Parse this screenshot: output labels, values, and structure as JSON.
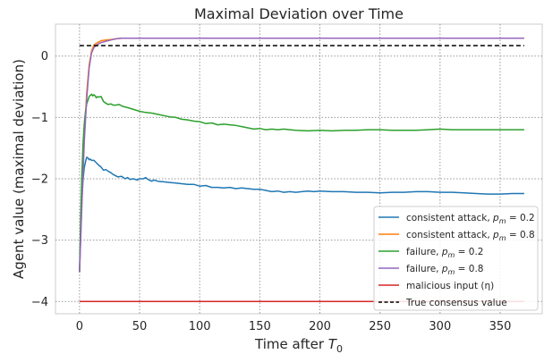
{
  "chart_data": {
    "type": "line",
    "title": "Maximal Deviation over Time",
    "xlabel": "Time after T₀",
    "ylabel": "Agent value (maximal deviation)",
    "xlim": [
      -20,
      385
    ],
    "ylim": [
      -4.2,
      0.52
    ],
    "xticks": [
      0,
      50,
      100,
      150,
      200,
      250,
      300,
      350
    ],
    "yticks": [
      0,
      -1,
      -2,
      -3,
      -4
    ],
    "grid": true,
    "legend_position": "lower-right",
    "series": [
      {
        "name": "consistent attack, p_m = 0.2",
        "label_main": "consistent attack, ",
        "label_p": "p",
        "label_sub": "m",
        "label_rest": " = 0.2",
        "color": "#1f77b4",
        "x": [
          0,
          1,
          2,
          3,
          4,
          5,
          6,
          7,
          8,
          9,
          10,
          12,
          14,
          16,
          18,
          20,
          22,
          24,
          26,
          28,
          30,
          32,
          35,
          38,
          40,
          42,
          45,
          48,
          50,
          53,
          55,
          57,
          60,
          62,
          65,
          70,
          75,
          80,
          85,
          90,
          95,
          100,
          105,
          110,
          115,
          120,
          125,
          130,
          135,
          140,
          145,
          150,
          155,
          160,
          165,
          170,
          175,
          180,
          185,
          190,
          195,
          200,
          210,
          220,
          230,
          240,
          250,
          260,
          270,
          280,
          290,
          300,
          310,
          320,
          330,
          340,
          350,
          360,
          370
        ],
        "y": [
          -3.52,
          -2.8,
          -2.3,
          -2.0,
          -1.82,
          -1.72,
          -1.65,
          -1.66,
          -1.69,
          -1.68,
          -1.7,
          -1.7,
          -1.74,
          -1.78,
          -1.81,
          -1.86,
          -1.85,
          -1.88,
          -1.9,
          -1.93,
          -1.95,
          -1.97,
          -1.96,
          -2.0,
          -1.98,
          -2.01,
          -2.0,
          -2.02,
          -2.0,
          -2.0,
          -1.98,
          -2.01,
          -2.04,
          -2.02,
          -2.04,
          -2.05,
          -2.06,
          -2.07,
          -2.08,
          -2.09,
          -2.09,
          -2.12,
          -2.11,
          -2.14,
          -2.14,
          -2.15,
          -2.14,
          -2.16,
          -2.15,
          -2.16,
          -2.17,
          -2.17,
          -2.19,
          -2.21,
          -2.2,
          -2.22,
          -2.21,
          -2.22,
          -2.21,
          -2.2,
          -2.21,
          -2.2,
          -2.21,
          -2.21,
          -2.22,
          -2.22,
          -2.23,
          -2.22,
          -2.22,
          -2.21,
          -2.21,
          -2.22,
          -2.22,
          -2.23,
          -2.24,
          -2.25,
          -2.25,
          -2.24,
          -2.24
        ]
      },
      {
        "name": "consistent attack, p_m = 0.8",
        "label_main": "consistent attack, ",
        "label_p": "p",
        "label_sub": "m",
        "label_rest": " = 0.8",
        "color": "#ff7f0e",
        "x": [
          0,
          2,
          4,
          6,
          8,
          10,
          12,
          15,
          18,
          22,
          26,
          30,
          35,
          40,
          370
        ],
        "y": [
          -3.52,
          -2.3,
          -1.3,
          -0.6,
          -0.15,
          0.08,
          0.18,
          0.22,
          0.25,
          0.26,
          0.27,
          0.28,
          0.29,
          0.29,
          0.29
        ]
      },
      {
        "name": "failure, p_m = 0.2",
        "label_main": "failure, ",
        "label_p": "p",
        "label_sub": "m",
        "label_rest": " = 0.2",
        "color": "#2ca02c",
        "x": [
          0,
          1,
          2,
          3,
          4,
          5,
          6,
          7,
          8,
          9,
          10,
          11,
          12,
          13,
          14,
          15,
          16,
          18,
          20,
          22,
          24,
          26,
          28,
          30,
          33,
          36,
          40,
          45,
          50,
          55,
          60,
          65,
          70,
          75,
          80,
          85,
          90,
          95,
          100,
          105,
          110,
          115,
          120,
          125,
          130,
          135,
          140,
          145,
          150,
          155,
          160,
          165,
          170,
          175,
          180,
          190,
          200,
          210,
          220,
          230,
          240,
          250,
          260,
          270,
          280,
          290,
          300,
          310,
          320,
          330,
          340,
          350,
          360,
          370
        ],
        "y": [
          -3.52,
          -2.6,
          -1.9,
          -1.4,
          -1.1,
          -0.9,
          -0.78,
          -0.72,
          -0.66,
          -0.64,
          -0.62,
          -0.65,
          -0.63,
          -0.65,
          -0.68,
          -0.66,
          -0.67,
          -0.66,
          -0.74,
          -0.77,
          -0.79,
          -0.78,
          -0.8,
          -0.8,
          -0.79,
          -0.82,
          -0.84,
          -0.87,
          -0.9,
          -0.92,
          -0.93,
          -0.95,
          -0.97,
          -0.99,
          -1.0,
          -1.03,
          -1.04,
          -1.06,
          -1.07,
          -1.1,
          -1.09,
          -1.12,
          -1.11,
          -1.12,
          -1.13,
          -1.15,
          -1.17,
          -1.19,
          -1.18,
          -1.2,
          -1.19,
          -1.2,
          -1.19,
          -1.2,
          -1.21,
          -1.22,
          -1.21,
          -1.22,
          -1.21,
          -1.21,
          -1.2,
          -1.2,
          -1.21,
          -1.21,
          -1.21,
          -1.2,
          -1.19,
          -1.2,
          -1.2,
          -1.2,
          -1.2,
          -1.2,
          -1.2,
          -1.2
        ]
      },
      {
        "name": "failure, p_m = 0.8",
        "label_main": "failure, ",
        "label_p": "p",
        "label_sub": "m",
        "label_rest": " = 0.8",
        "color": "#9467bd",
        "x": [
          0,
          2,
          4,
          6,
          8,
          10,
          12,
          15,
          18,
          22,
          26,
          30,
          35,
          40,
          370
        ],
        "y": [
          -3.52,
          -2.4,
          -1.4,
          -0.7,
          -0.2,
          0.05,
          0.14,
          0.19,
          0.22,
          0.24,
          0.26,
          0.28,
          0.29,
          0.29,
          0.29
        ]
      },
      {
        "name": "malicious input (η)",
        "label_main": "malicious input (η)",
        "label_p": "",
        "label_sub": "",
        "label_rest": "",
        "color": "#d62728",
        "x": [
          0,
          370
        ],
        "y": [
          -4.0,
          -4.0
        ]
      },
      {
        "name": "True consensus value",
        "label_main": "True consensus value",
        "label_p": "",
        "label_sub": "",
        "label_rest": "",
        "color": "#000000",
        "dashed": true,
        "x": [
          0,
          370
        ],
        "y": [
          0.17,
          0.17
        ]
      }
    ]
  }
}
